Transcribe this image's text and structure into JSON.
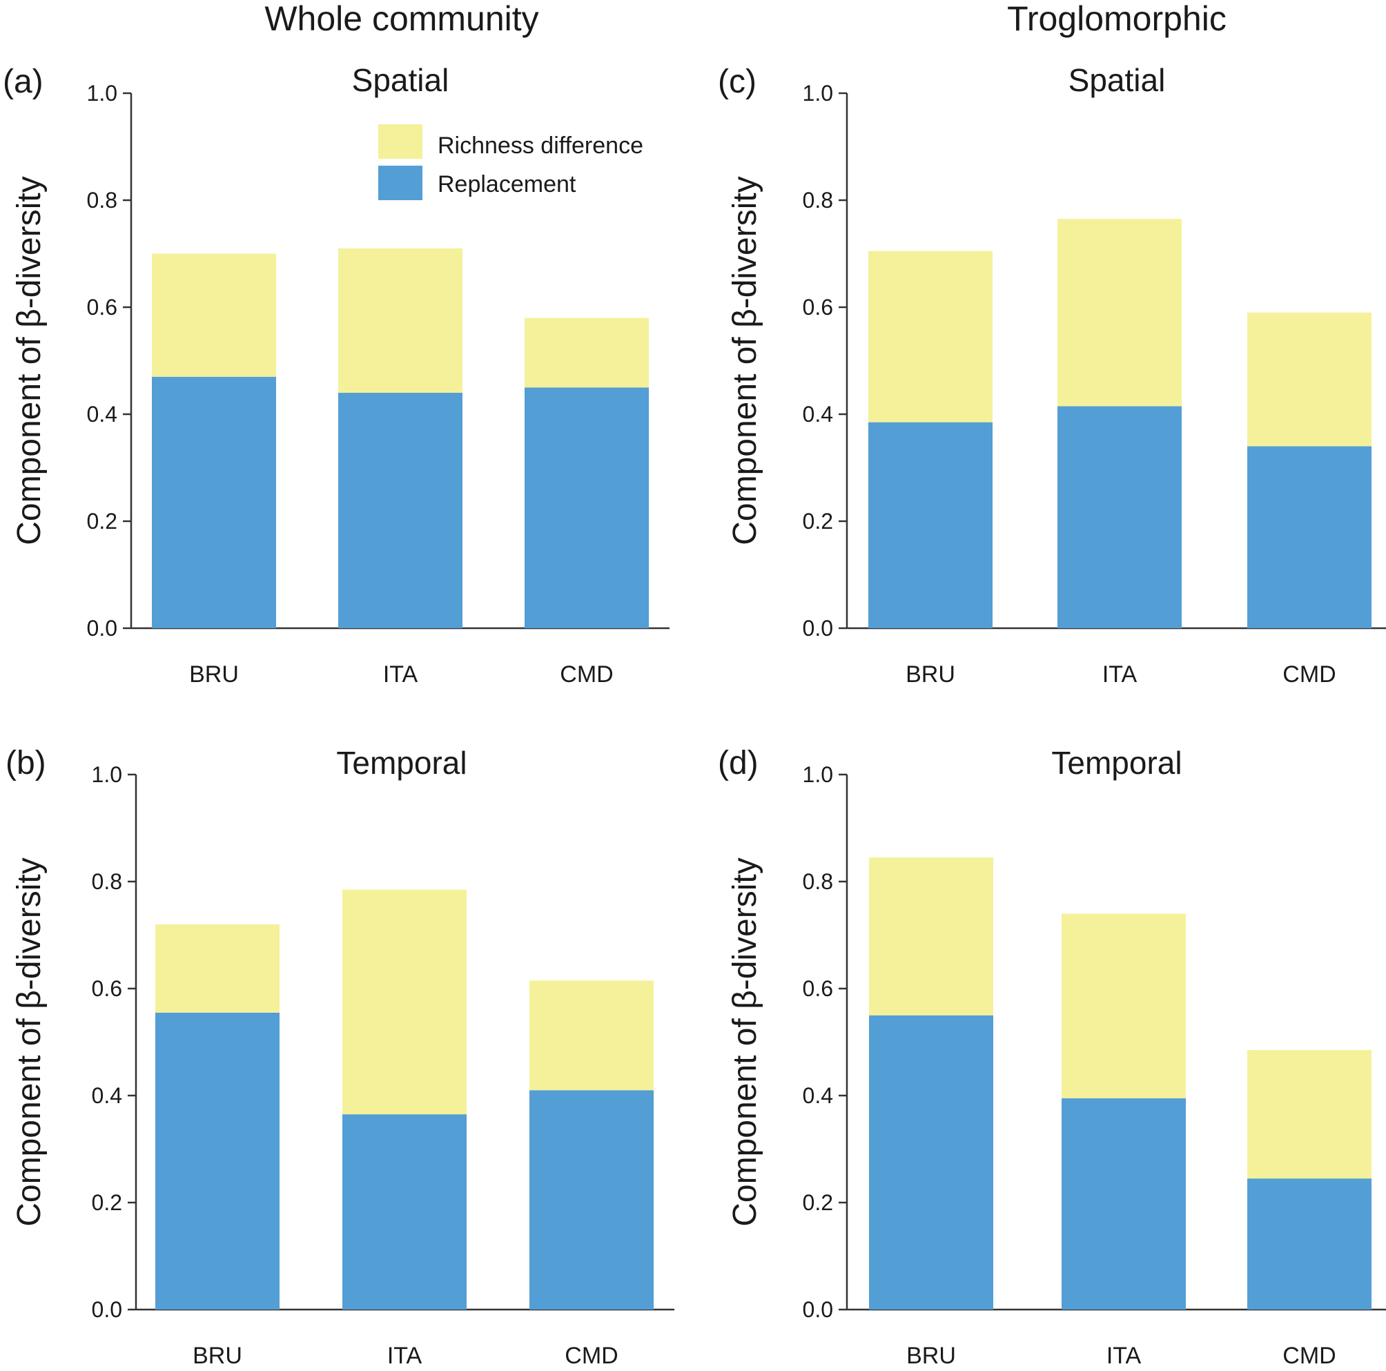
{
  "column_titles": [
    "Whole community",
    "Troglomorphic"
  ],
  "colors": {
    "replacement": "#539ED5",
    "richness": "#F5F19A",
    "axis": "#333333"
  },
  "legend": {
    "richness_label": "Richness difference",
    "replacement_label": "Replacement",
    "placement": "top-right of panel (a)"
  },
  "chart_data": [
    {
      "panel": "(a)",
      "title": "Spatial",
      "type": "bar",
      "stacked": true,
      "categories": [
        "BRU",
        "ITA",
        "CMD"
      ],
      "ylabel": "Component of β-diversity",
      "ylim": [
        0,
        1
      ],
      "yticks": [
        "0.0",
        "0.2",
        "0.4",
        "0.6",
        "0.8",
        "1.0"
      ],
      "series": [
        {
          "name": "Replacement",
          "values": [
            0.47,
            0.44,
            0.45
          ]
        },
        {
          "name": "Richness difference",
          "values": [
            0.23,
            0.27,
            0.13
          ]
        }
      ]
    },
    {
      "panel": "(b)",
      "title": "Temporal",
      "type": "bar",
      "stacked": true,
      "categories": [
        "BRU",
        "ITA",
        "CMD"
      ],
      "ylabel": "Component of β-diversity",
      "ylim": [
        0,
        1
      ],
      "yticks": [
        "0.0",
        "0.2",
        "0.4",
        "0.6",
        "0.8",
        "1.0"
      ],
      "series": [
        {
          "name": "Replacement",
          "values": [
            0.555,
            0.365,
            0.41
          ]
        },
        {
          "name": "Richness difference",
          "values": [
            0.165,
            0.42,
            0.205
          ]
        }
      ]
    },
    {
      "panel": "(c)",
      "title": "Spatial",
      "type": "bar",
      "stacked": true,
      "categories": [
        "BRU",
        "ITA",
        "CMD"
      ],
      "ylabel": "Component of β-diversity",
      "ylim": [
        0,
        1
      ],
      "yticks": [
        "0.0",
        "0.2",
        "0.4",
        "0.6",
        "0.8",
        "1.0"
      ],
      "series": [
        {
          "name": "Replacement",
          "values": [
            0.385,
            0.415,
            0.34
          ]
        },
        {
          "name": "Richness difference",
          "values": [
            0.32,
            0.35,
            0.25
          ]
        }
      ]
    },
    {
      "panel": "(d)",
      "title": "Temporal",
      "type": "bar",
      "stacked": true,
      "categories": [
        "BRU",
        "ITA",
        "CMD"
      ],
      "ylabel": "Component of β-diversity",
      "ylim": [
        0,
        1
      ],
      "yticks": [
        "0.0",
        "0.2",
        "0.4",
        "0.6",
        "0.8",
        "1.0"
      ],
      "series": [
        {
          "name": "Replacement",
          "values": [
            0.55,
            0.395,
            0.245
          ]
        },
        {
          "name": "Richness difference",
          "values": [
            0.295,
            0.345,
            0.24
          ]
        }
      ]
    }
  ]
}
